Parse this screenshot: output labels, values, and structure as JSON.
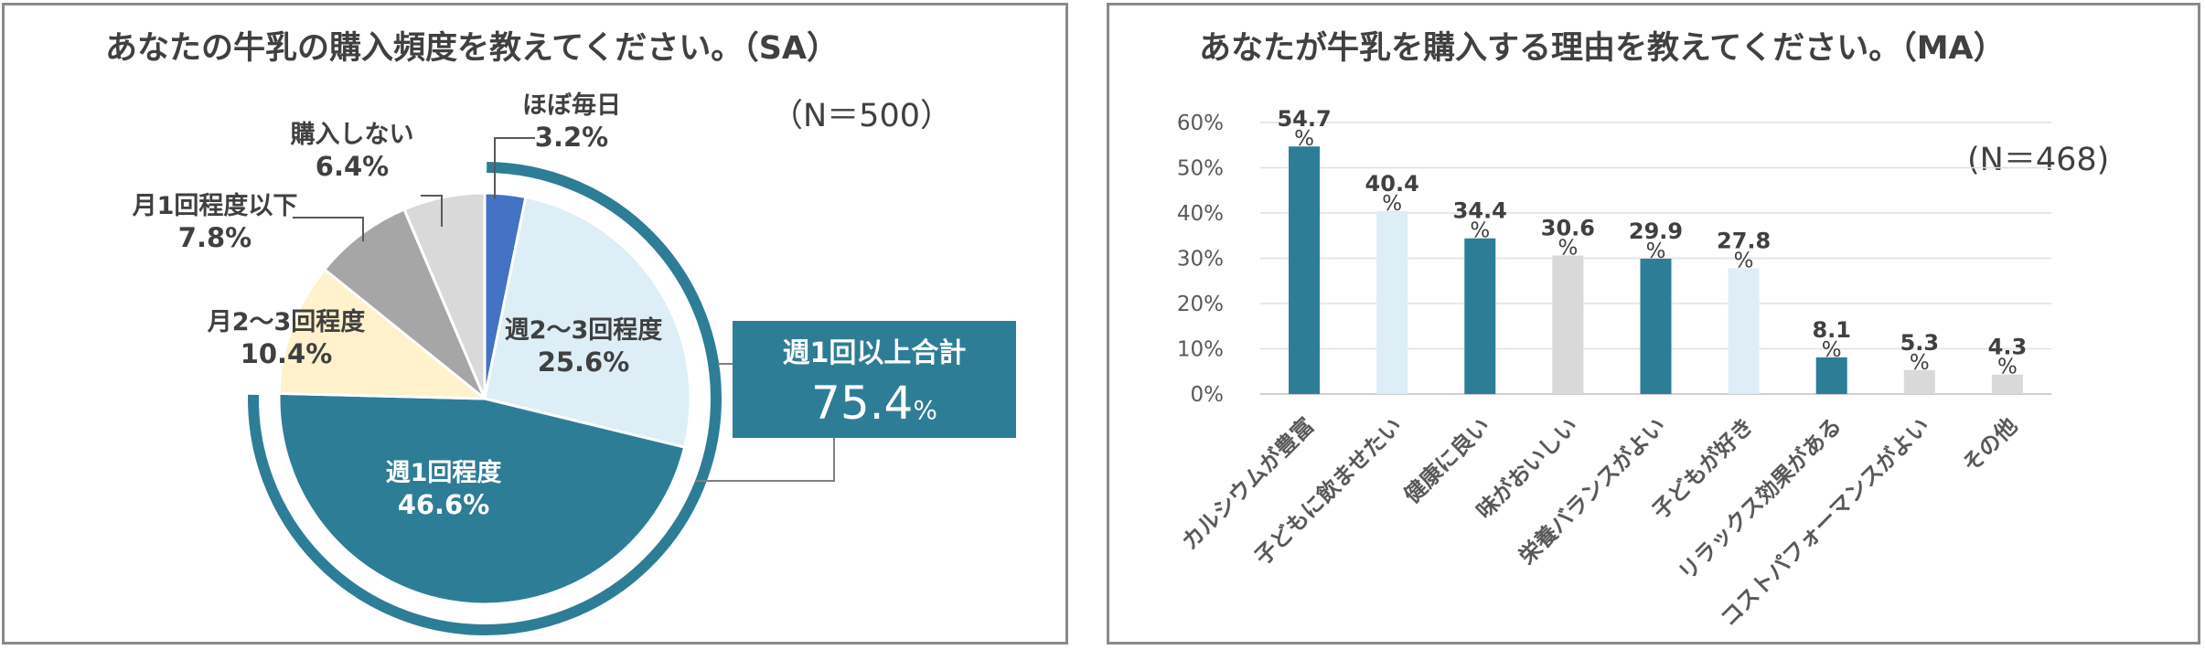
{
  "colors": {
    "teal": "#2e7d96",
    "light_blue": "#ddeef7",
    "cream": "#fff2cc",
    "gray": "#a6a6a6",
    "light_gray": "#d9d9d9",
    "blue": "#4472c4",
    "text": "#404040",
    "white": "#ffffff"
  },
  "left_panel": {
    "title": "あなたの牛乳の購入頻度を教えてください。（SA）",
    "n_label": "（N＝500）",
    "callout": {
      "title": "週1回以上合計",
      "value": "75.4",
      "unit": "%"
    }
  },
  "right_panel": {
    "title": "あなたが牛乳を購入する理由を教えてください。（MA）",
    "n_label": "(N＝468)"
  },
  "chart_data": [
    {
      "type": "pie",
      "slices": [
        {
          "label": "ほぼ毎日",
          "value": 3.2,
          "value_text": "3.2%",
          "color": "#4472c4"
        },
        {
          "label": "週2～3回程度",
          "value": 25.6,
          "value_text": "25.6%",
          "color": "#ddeef7"
        },
        {
          "label": "週1回程度",
          "value": 46.6,
          "value_text": "46.6%",
          "color": "#2e7d96"
        },
        {
          "label": "月2～3回程度",
          "value": 10.4,
          "value_text": "10.4%",
          "color": "#fff2cc"
        },
        {
          "label": "月1回程度以下",
          "value": 7.8,
          "value_text": "7.8%",
          "color": "#a6a6a6"
        },
        {
          "label": "購入しない",
          "value": 6.4,
          "value_text": "6.4%",
          "color": "#d9d9d9"
        }
      ],
      "title": "あなたの牛乳の購入頻度を教えてください。（SA）"
    },
    {
      "type": "bar",
      "categories": [
        "カルシウムが豊富",
        "子どもに飲ませたい",
        "健康に良い",
        "味がおいしい",
        "栄養バランスがよい",
        "子どもが好き",
        "リラックス効果がある",
        "コストパフォーマンスがよい",
        "その他"
      ],
      "values": [
        54.7,
        40.4,
        34.4,
        30.6,
        29.9,
        27.8,
        8.1,
        5.3,
        4.3
      ],
      "value_texts": [
        "54.7",
        "40.4",
        "34.4",
        "30.6",
        "29.9",
        "27.8",
        "8.1",
        "5.3",
        "4.3"
      ],
      "value_unit": "%",
      "colors": [
        "#2e7d96",
        "#ddeef7",
        "#2e7d96",
        "#d9d9d9",
        "#2e7d96",
        "#ddeef7",
        "#2e7d96",
        "#d9d9d9",
        "#d9d9d9"
      ],
      "ytick_labels": [
        "0%",
        "10%",
        "20%",
        "30%",
        "40%",
        "50%",
        "60%"
      ],
      "ylim": [
        0,
        60
      ],
      "grid": true,
      "title": "あなたが牛乳を購入する理由を教えてください。（MA）",
      "xlabel": "",
      "ylabel": ""
    }
  ]
}
